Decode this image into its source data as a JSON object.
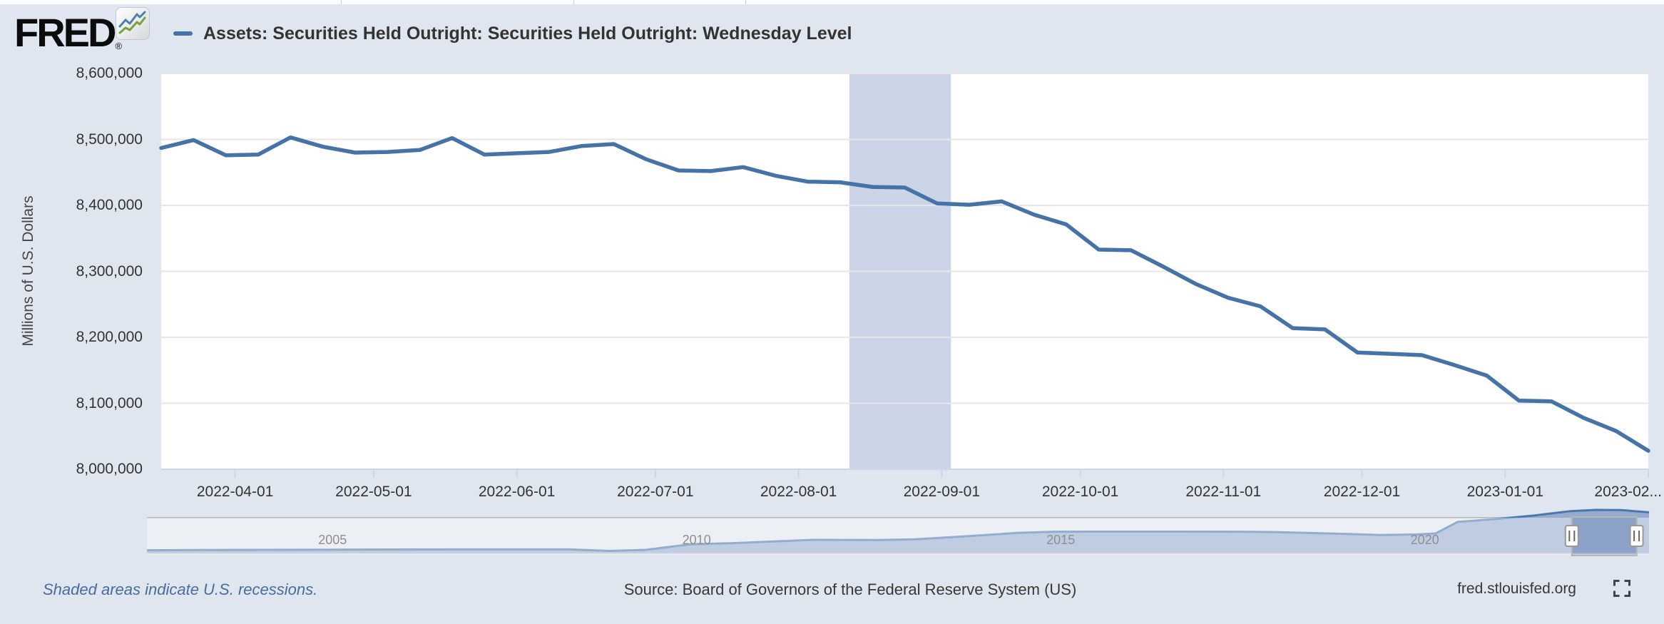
{
  "header": {
    "logo_text": "FRED",
    "logo_registered_mark": "®",
    "legend": {
      "label": "Assets: Securities Held Outright: Securities Held Outright: Wednesday Level",
      "color": "#4572a7"
    }
  },
  "chart_data": {
    "type": "line",
    "title": "Assets: Securities Held Outright: Securities Held Outright: Wednesday Level",
    "xlabel": "",
    "ylabel": "Millions of U.S. Dollars",
    "ylim": [
      8000000,
      8600000
    ],
    "ytick_step": 100000,
    "ytick_labels": [
      "8,000,000",
      "8,100,000",
      "8,200,000",
      "8,300,000",
      "8,400,000",
      "8,500,000",
      "8,600,000"
    ],
    "xtick_dates": [
      "2022-04-01",
      "2022-05-01",
      "2022-06-01",
      "2022-07-01",
      "2022-08-01",
      "2022-09-01",
      "2022-10-01",
      "2022-11-01",
      "2022-12-01",
      "2023-01-01",
      "2023-02-01"
    ],
    "xtick_labels": [
      "2022-04-01",
      "2022-05-01",
      "2022-06-01",
      "2022-07-01",
      "2022-08-01",
      "2022-09-01",
      "2022-10-01",
      "2022-11-01",
      "2022-12-01",
      "2023-01-01",
      "2023-02..."
    ],
    "grid": true,
    "legend_position": "top",
    "recession_band": {
      "start": "2022-08-12",
      "end": "2022-09-03"
    },
    "series": [
      {
        "name": "Assets: Securities Held Outright: Securities Held Outright: Wednesday Level",
        "frequency": "weekly (Wednesday)",
        "color": "#4572a7",
        "dates": [
          "2022-03-16",
          "2022-03-23",
          "2022-03-30",
          "2022-04-06",
          "2022-04-13",
          "2022-04-20",
          "2022-04-27",
          "2022-05-04",
          "2022-05-11",
          "2022-05-18",
          "2022-05-25",
          "2022-06-01",
          "2022-06-08",
          "2022-06-15",
          "2022-06-22",
          "2022-06-29",
          "2022-07-06",
          "2022-07-13",
          "2022-07-20",
          "2022-07-27",
          "2022-08-03",
          "2022-08-10",
          "2022-08-17",
          "2022-08-24",
          "2022-08-31",
          "2022-09-07",
          "2022-09-14",
          "2022-09-21",
          "2022-09-28",
          "2022-10-05",
          "2022-10-12",
          "2022-10-19",
          "2022-10-26",
          "2022-11-02",
          "2022-11-09",
          "2022-11-16",
          "2022-11-23",
          "2022-11-30",
          "2022-12-07",
          "2022-12-14",
          "2022-12-21",
          "2022-12-28",
          "2023-01-04",
          "2023-01-11",
          "2023-01-18",
          "2023-01-25",
          "2023-02-01"
        ],
        "values": [
          8487000,
          8499000,
          8476000,
          8477000,
          8503000,
          8489000,
          8480000,
          8481000,
          8484000,
          8502000,
          8477000,
          8479000,
          8481000,
          8490000,
          8493000,
          8470000,
          8453000,
          8452000,
          8458000,
          8445000,
          8436000,
          8435000,
          8428000,
          8427000,
          8403000,
          8401000,
          8406000,
          8386000,
          8371000,
          8333000,
          8332000,
          8307000,
          8281000,
          8260000,
          8247000,
          8214000,
          8212000,
          8177000,
          8175000,
          8173000,
          8158000,
          8142000,
          8104000,
          8103000,
          8078000,
          8058000,
          8028000
        ]
      }
    ],
    "navigator": {
      "year_labels": [
        "2005",
        "2010",
        "2015",
        "2020"
      ],
      "year_label_positions": [
        2005,
        2010,
        2015,
        2020
      ],
      "x_domain_years": [
        2002.45,
        2023.08
      ],
      "vmax": 8500000,
      "points": [
        [
          2002.45,
          620000
        ],
        [
          2003.2,
          650000
        ],
        [
          2004.0,
          690000
        ],
        [
          2005.0,
          736000
        ],
        [
          2006.0,
          760000
        ],
        [
          2007.0,
          778000
        ],
        [
          2008.25,
          779000
        ],
        [
          2008.8,
          492000
        ],
        [
          2009.3,
          700000
        ],
        [
          2009.9,
          1750000
        ],
        [
          2010.5,
          2000000
        ],
        [
          2011.0,
          2300000
        ],
        [
          2011.6,
          2650000
        ],
        [
          2012.5,
          2610000
        ],
        [
          2013.0,
          2750000
        ],
        [
          2013.7,
          3350000
        ],
        [
          2014.4,
          4000000
        ],
        [
          2014.9,
          4230000
        ],
        [
          2015.5,
          4250000
        ],
        [
          2016.5,
          4250000
        ],
        [
          2017.5,
          4240000
        ],
        [
          2018.0,
          4150000
        ],
        [
          2018.8,
          3850000
        ],
        [
          2019.4,
          3590000
        ],
        [
          2019.9,
          3700000
        ],
        [
          2020.15,
          3900000
        ],
        [
          2020.45,
          6150000
        ],
        [
          2021.0,
          6750000
        ],
        [
          2021.5,
          7400000
        ],
        [
          2022.0,
          8250000
        ],
        [
          2022.35,
          8500000
        ],
        [
          2022.7,
          8460000
        ],
        [
          2023.08,
          8030000
        ]
      ],
      "selection_years": [
        2022.02,
        2022.91
      ]
    }
  },
  "footer": {
    "note": "Shaded areas indicate U.S. recessions.",
    "source": "Source: Board of Governors of the Federal Reserve System (US)",
    "site": "fred.stlouisfed.org"
  },
  "colors": {
    "page_bg": "#e0e6ef",
    "plot_bg": "#ffffff",
    "grid": "#e6e6e6",
    "axis": "#ccd6eb",
    "band": "#ccd5e8",
    "line": "#4572a7",
    "nav_fill": "#97abce",
    "nav_line": "#4a77ad",
    "nav_top_line": "#b6b6b6",
    "nav_mask": "rgba(255,255,255,0.40)",
    "nav_selection_tint": "rgba(91,119,170,0.18)",
    "nav_border": "#b5b5b5",
    "handle_bg": "#fcfcfc",
    "handle_border": "#999999",
    "handle_grip": "#666666",
    "logo_blue": "#4e7fb0",
    "logo_green": "#75a33e",
    "fullscreen_icon": "#444444"
  }
}
